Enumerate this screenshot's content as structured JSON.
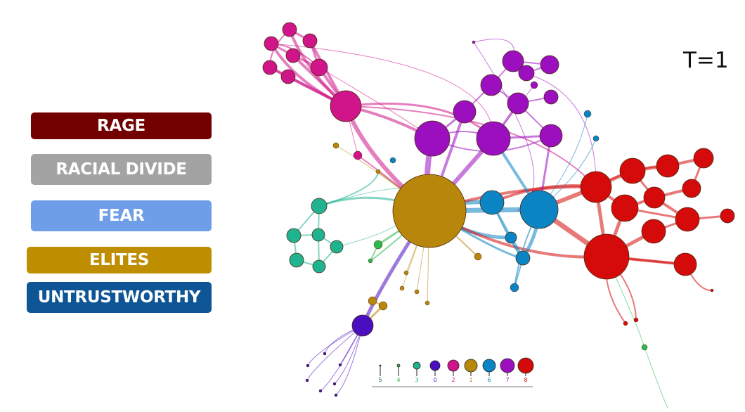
{
  "legend": [
    {
      "label": "RAGE",
      "color": "#730000"
    },
    {
      "label": "RACIAL DIVIDE",
      "color": "#a3a3a3"
    },
    {
      "label": "FEAR",
      "color": "#6e9ee8"
    },
    {
      "label": "ELITES",
      "color": "#bf8e00"
    },
    {
      "label": "UNTRUSTWORTHY",
      "color": "#0e5596"
    }
  ],
  "time_label": "T=1",
  "cluster_colors": {
    "5": "#2d6b2d",
    "4": "#2eb84d",
    "3": "#1fb38f",
    "0": "#4a0dbf",
    "2": "#d0148a",
    "1": "#b8860b",
    "6": "#0a84c2",
    "7": "#9b0fbf",
    "8": "#d50b0b"
  },
  "size_key": [
    "5",
    "4",
    "3",
    "0",
    "2",
    "1",
    "6",
    "7",
    "8"
  ]
}
